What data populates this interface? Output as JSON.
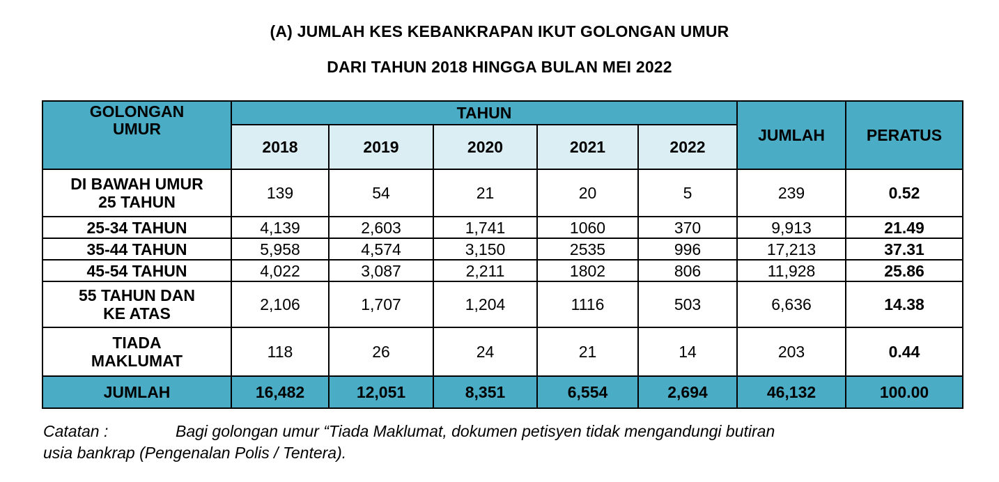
{
  "title_line1": "(A) JUMLAH KES KEBANKRAPAN IKUT GOLONGAN UMUR",
  "title_line2": "DARI TAHUN 2018 HINGGA BULAN MEI  2022",
  "header": {
    "group_line1": "GOLONGAN",
    "group_line2": "UMUR",
    "year_group": "TAHUN",
    "years": [
      "2018",
      "2019",
      "2020",
      "2021",
      "2022"
    ],
    "total": "JUMLAH",
    "percent": "PERATUS"
  },
  "rows": [
    {
      "label_line1": "DI BAWAH UMUR",
      "label_line2": "25 TAHUN",
      "values": [
        "139",
        "54",
        "21",
        "20",
        "5"
      ],
      "total": "239",
      "percent": "0.52"
    },
    {
      "label_line1": "25-34 TAHUN",
      "label_line2": "",
      "values": [
        "4,139",
        "2,603",
        "1,741",
        "1060",
        "370"
      ],
      "total": "9,913",
      "percent": "21.49"
    },
    {
      "label_line1": "35-44 TAHUN",
      "label_line2": "",
      "values": [
        "5,958",
        "4,574",
        "3,150",
        "2535",
        "996"
      ],
      "total": "17,213",
      "percent": "37.31"
    },
    {
      "label_line1": "45-54 TAHUN",
      "label_line2": "",
      "values": [
        "4,022",
        "3,087",
        "2,211",
        "1802",
        "806"
      ],
      "total": "11,928",
      "percent": "25.86"
    },
    {
      "label_line1": "55 TAHUN DAN",
      "label_line2": "KE ATAS",
      "values": [
        "2,106",
        "1,707",
        "1,204",
        "1116",
        "503"
      ],
      "total": "6,636",
      "percent": "14.38"
    },
    {
      "label_line1": "TIADA",
      "label_line2": "MAKLUMAT",
      "values": [
        "118",
        "26",
        "24",
        "21",
        "14"
      ],
      "total": "203",
      "percent": "0.44"
    }
  ],
  "totals": {
    "label": "JUMLAH",
    "values": [
      "16,482",
      "12,051",
      "8,351",
      "6,554",
      "2,694"
    ],
    "total": "46,132",
    "percent": "100.00"
  },
  "note": {
    "label": "Catatan :",
    "text_line1": "Bagi golongan umur “Tiada Maklumat, dokumen petisyen tidak mengandungi butiran",
    "text_line2": "usia bankrap (Pengenalan Polis / Tentera)."
  },
  "colors": {
    "header_blue": "#4bacc6",
    "year_light": "#dbeef4"
  }
}
